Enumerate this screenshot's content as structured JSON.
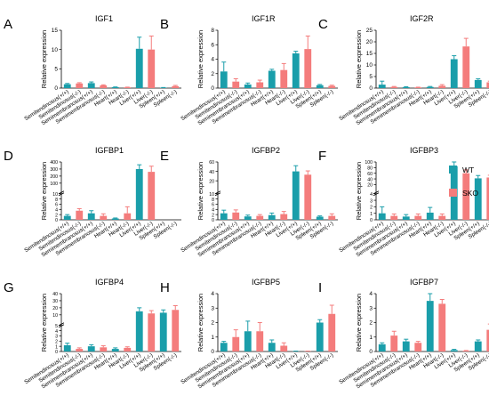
{
  "colors": {
    "WT": "#1a9eaa",
    "SKO": "#f47c7c",
    "axis": "#000000"
  },
  "legend": {
    "items": [
      {
        "name": "WT",
        "color": "#1a9eaa"
      },
      {
        "name": "SKO",
        "color": "#f47c7c"
      }
    ]
  },
  "chart_data": [
    {
      "type": "bar",
      "panel": "A",
      "title": "IGF1",
      "ylabel": "Relative expression",
      "ylim": [
        0,
        15
      ],
      "yticks": [
        "0",
        "5",
        "10",
        "15"
      ],
      "axis_break": false,
      "categories": [
        "Semitendinosus(+/+)",
        "Semitendinosus(-/-)",
        "Semimembranosus(+/+)",
        "Semimembranosus(-/-)",
        "Heart(+/+)",
        "Heart(-/-)",
        "Liver(+/+)",
        "Liver(-/-)",
        "Spleen(+/+)",
        "Spleen(-/-)"
      ],
      "series": [
        {
          "name": "WT"
        },
        {
          "name": "SKO"
        }
      ],
      "values": [
        1.0,
        1.2,
        1.3,
        0.7,
        0.25,
        0.2,
        10.2,
        10.0,
        0.1,
        0.5
      ],
      "errors": [
        0.2,
        0.2,
        0.3,
        0.15,
        0.05,
        0.05,
        3.0,
        3.5,
        0.05,
        0.2
      ]
    },
    {
      "type": "bar",
      "panel": "B",
      "title": "IGF1R",
      "ylabel": "Relative expression",
      "ylim": [
        0,
        8
      ],
      "yticks": [
        "0",
        "2",
        "4",
        "6",
        "8"
      ],
      "axis_break": false,
      "categories": [
        "Semitendinosus(+/+)",
        "Semitendinosus(-/-)",
        "Semimembranosus(+/+)",
        "Semimembranosus(-/-)",
        "Heart(+/+)",
        "Heart(-/-)",
        "Liver(+/+)",
        "Liver(-/-)",
        "Spleen(+/+)",
        "Spleen(-/-)"
      ],
      "series": [
        {
          "name": "WT"
        },
        {
          "name": "SKO"
        }
      ],
      "values": [
        2.3,
        0.9,
        0.5,
        0.8,
        2.4,
        2.5,
        4.8,
        5.4,
        0.4,
        0.3
      ],
      "errors": [
        1.3,
        0.4,
        0.2,
        0.3,
        0.2,
        0.9,
        0.3,
        1.8,
        0.1,
        0.1
      ]
    },
    {
      "type": "bar",
      "panel": "C",
      "title": "IGF2R",
      "ylabel": "Relative expression",
      "ylim": [
        0,
        25
      ],
      "yticks": [
        "0",
        "5",
        "10",
        "15",
        "20",
        "25"
      ],
      "axis_break": false,
      "categories": [
        "Semitendinosus(+/+)",
        "Semitendinosus(-/-)",
        "Semimembranosus(+/+)",
        "Semimembranosus(-/-)",
        "Heart(+/+)",
        "Heart(-/-)",
        "Liver(+/+)",
        "Liver(-/-)",
        "Spleen(+/+)",
        "Spleen(-/-)"
      ],
      "series": [
        {
          "name": "WT"
        },
        {
          "name": "SKO"
        }
      ],
      "values": [
        1.5,
        0.5,
        0.4,
        0.3,
        0.5,
        1.0,
        12.5,
        18.0,
        3.5,
        2.5
      ],
      "errors": [
        1.5,
        0.2,
        0.2,
        0.1,
        0.2,
        0.5,
        1.5,
        3.5,
        0.5,
        0.5
      ]
    },
    {
      "type": "bar",
      "panel": "D",
      "title": "IGFBP1",
      "ylabel": "Relative expression",
      "ylim": [
        0,
        400
      ],
      "yticks": [
        "0",
        "2",
        "4",
        "6",
        "8",
        "10",
        "100",
        "200",
        "300",
        "400"
      ],
      "axis_break": true,
      "categories": [
        "Semitendinosus(+/+)",
        "Semitendinosus(-/-)",
        "Semimembranosus(+/+)",
        "Semimembranosus(-/-)",
        "Heart(+/+)",
        "Heart(-/-)",
        "Liver(+/+)",
        "Liver(-/-)",
        "Spleen(+/+)",
        "Spleen(-/-)"
      ],
      "series": [
        {
          "name": "WT"
        },
        {
          "name": "SKO"
        }
      ],
      "values": [
        1.5,
        3.5,
        2.5,
        1.5,
        0.5,
        2.5,
        300,
        260,
        0,
        0
      ],
      "errors": [
        0.5,
        0.8,
        1.0,
        0.8,
        0.2,
        2.5,
        60,
        80,
        0,
        0
      ]
    },
    {
      "type": "bar",
      "panel": "E",
      "title": "IGFBP2",
      "ylabel": "Relative expression",
      "ylim": [
        0,
        60
      ],
      "yticks": [
        "0",
        "2",
        "4",
        "6",
        "8",
        "10",
        "20",
        "40",
        "60"
      ],
      "axis_break": true,
      "categories": [
        "Semitendinosus(+/+)",
        "Semitendinosus(-/-)",
        "Semimembranosus(+/+)",
        "Semimembranosus(-/-)",
        "Heart(+/+)",
        "Heart(-/-)",
        "Liver(+/+)",
        "Liver(-/-)",
        "Spleen(+/+)",
        "Spleen(-/-)"
      ],
      "series": [
        {
          "name": "WT"
        },
        {
          "name": "SKO"
        }
      ],
      "values": [
        2.5,
        2.8,
        1.3,
        1.5,
        1.8,
        2.2,
        40,
        33,
        1.2,
        1.5
      ],
      "errors": [
        1.2,
        1.0,
        0.5,
        0.5,
        0.8,
        1.0,
        12,
        8,
        0.3,
        0.8
      ]
    },
    {
      "type": "bar",
      "panel": "F",
      "title": "IGFBP3",
      "ylabel": "Relative expression",
      "ylim": [
        0,
        100
      ],
      "yticks": [
        "0",
        "1",
        "2",
        "3",
        "4",
        "20",
        "40",
        "60",
        "80",
        "100"
      ],
      "axis_break": true,
      "categories": [
        "Semitendinosus(+/+)",
        "Semitendinosus(-/-)",
        "Semimembranosus(+/+)",
        "Semimembranosus(-/-)",
        "Heart(+/+)",
        "Heart(-/-)",
        "Liver(+/+)",
        "Liver(-/-)",
        "Spleen(+/+)",
        "Spleen(-/-)"
      ],
      "series": [
        {
          "name": "WT"
        },
        {
          "name": "SKO"
        }
      ],
      "values": [
        1.0,
        0.6,
        0.5,
        0.6,
        1.1,
        0.6,
        85,
        60,
        42,
        45
      ],
      "errors": [
        1.0,
        0.3,
        0.3,
        0.3,
        0.8,
        0.3,
        25,
        12,
        10,
        8
      ]
    },
    {
      "type": "bar",
      "panel": "G",
      "title": "IGFBP4",
      "ylabel": "Relative expression",
      "ylim": [
        0,
        40
      ],
      "yticks": [
        "0",
        "1",
        "2",
        "3",
        "4",
        "5",
        "10",
        "20",
        "30",
        "40"
      ],
      "axis_break": true,
      "categories": [
        "Semitendinosus(+/+)",
        "Semitendinosus(-/-)",
        "Semimembranosus(+/+)",
        "Semimembranosus(-/-)",
        "Heart(+/+)",
        "Heart(-/-)",
        "Liver(+/+)",
        "Liver(-/-)",
        "Spleen(+/+)",
        "Spleen(-/-)"
      ],
      "series": [
        {
          "name": "WT"
        },
        {
          "name": "SKO"
        }
      ],
      "values": [
        1.2,
        0.5,
        1.0,
        0.8,
        0.5,
        0.7,
        15,
        12,
        13,
        17
      ],
      "errors": [
        0.4,
        0.2,
        0.3,
        0.3,
        0.2,
        0.2,
        5,
        4,
        4,
        6
      ]
    },
    {
      "type": "bar",
      "panel": "H",
      "title": "IGFBP5",
      "ylabel": "Relative expression",
      "ylim": [
        0,
        4
      ],
      "yticks": [
        "0",
        "1",
        "2",
        "3",
        "4"
      ],
      "axis_break": false,
      "categories": [
        "Semitendinosus(+/+)",
        "Semitendinosus(-/-)",
        "Semimembranosus(+/+)",
        "Semimembranosus(-/-)",
        "Heart(+/+)",
        "Heart(-/-)",
        "Liver(+/+)",
        "Liver(-/-)",
        "Spleen(+/+)",
        "Spleen(-/-)"
      ],
      "series": [
        {
          "name": "WT"
        },
        {
          "name": "SKO"
        }
      ],
      "values": [
        0.6,
        1.0,
        1.4,
        1.4,
        0.6,
        0.4,
        0.02,
        0.02,
        2.0,
        2.6
      ],
      "errors": [
        0.1,
        0.5,
        0.7,
        0.6,
        0.2,
        0.2,
        0.01,
        0.01,
        0.2,
        0.6
      ]
    },
    {
      "type": "bar",
      "panel": "I",
      "title": "IGFBP7",
      "ylabel": "Relative expression",
      "ylim": [
        0,
        4
      ],
      "yticks": [
        "0",
        "1",
        "2",
        "3",
        "4"
      ],
      "axis_break": false,
      "categories": [
        "Semitendinosus(+/+)",
        "Semitendinosus(-/-)",
        "Semimembranosus(+/+)",
        "Semimembranosus(-/-)",
        "Heart(+/+)",
        "Heart(-/-)",
        "Liver(+/+)",
        "Liver(-/-)",
        "Spleen(+/+)",
        "Spleen(-/-)"
      ],
      "series": [
        {
          "name": "WT"
        },
        {
          "name": "SKO"
        }
      ],
      "values": [
        0.5,
        1.1,
        0.7,
        0.6,
        3.5,
        3.3,
        0.1,
        0.05,
        0.7,
        1.5
      ],
      "errors": [
        0.1,
        0.3,
        0.15,
        0.1,
        1.2,
        0.3,
        0.05,
        0.02,
        0.1,
        0.4
      ]
    }
  ]
}
